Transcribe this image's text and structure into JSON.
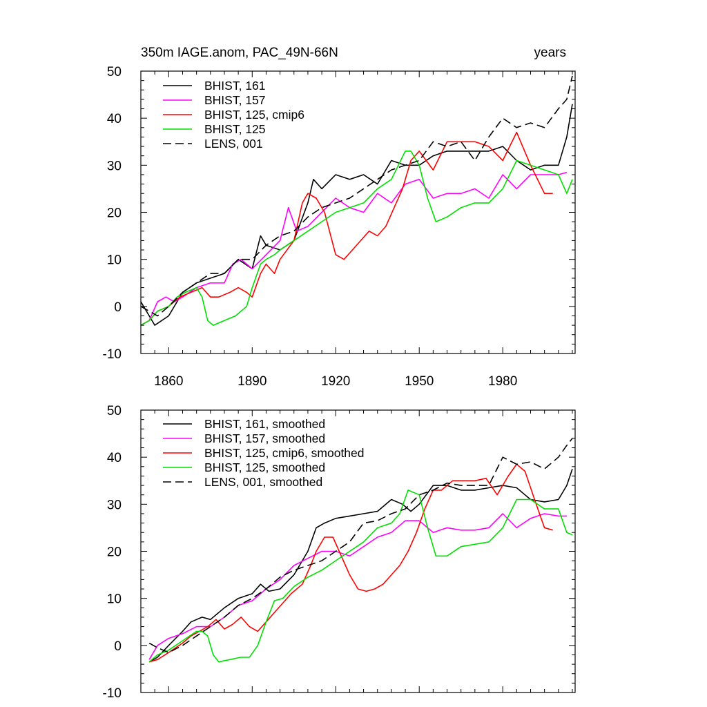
{
  "chart_data": [
    {
      "type": "line",
      "title_left": "350m IAGE.anom, PAC_49N-66N",
      "title_right": "years",
      "xlabel": "",
      "ylabel": "",
      "xlim": [
        1850,
        2006
      ],
      "ylim": [
        -10,
        50
      ],
      "x_ticks": [
        1860,
        1890,
        1920,
        1950,
        1980
      ],
      "x_tick_labels": [
        "1860",
        "1890",
        "1920",
        "1950",
        "1980"
      ],
      "y_ticks": [
        -10,
        0,
        10,
        20,
        30,
        40,
        50
      ],
      "y_tick_labels": [
        "-10",
        "0",
        "10",
        "20",
        "30",
        "40",
        "50"
      ],
      "legend_position": "top-left",
      "series": [
        {
          "name": "BHIST, 161",
          "color": "#000000",
          "dash": "solid",
          "x": [
            1850,
            1855,
            1860,
            1865,
            1870,
            1875,
            1880,
            1885,
            1890,
            1893,
            1895,
            1900,
            1905,
            1910,
            1912,
            1915,
            1920,
            1925,
            1930,
            1935,
            1940,
            1945,
            1950,
            1955,
            1960,
            1965,
            1970,
            1975,
            1980,
            1985,
            1990,
            1995,
            2000,
            2003,
            2005
          ],
          "values": [
            1,
            -4,
            -2,
            3,
            5,
            6,
            7,
            10,
            8,
            15,
            13,
            12,
            14,
            22,
            27,
            25,
            28,
            27,
            28,
            26,
            31,
            30,
            30,
            32,
            33,
            33,
            33,
            33,
            34,
            31,
            29,
            30,
            30,
            36,
            43
          ]
        },
        {
          "name": "BHIST, 157",
          "color": "#ff00ff",
          "dash": "solid",
          "x": [
            1850,
            1853,
            1856,
            1859,
            1862,
            1865,
            1870,
            1875,
            1880,
            1883,
            1886,
            1890,
            1895,
            1900,
            1903,
            1906,
            1910,
            1915,
            1920,
            1925,
            1930,
            1935,
            1940,
            1945,
            1950,
            1955,
            1960,
            1965,
            1970,
            1975,
            1980,
            1985,
            1990,
            1995,
            2000,
            2003
          ],
          "values": [
            -4,
            -3,
            1,
            2,
            1,
            2,
            4,
            5,
            5,
            9,
            10,
            8,
            11,
            14,
            21,
            16,
            17,
            20,
            23,
            21,
            20,
            24,
            22,
            26,
            27,
            23,
            24,
            24,
            25,
            23,
            28,
            25,
            28,
            28,
            28,
            28.5
          ]
        },
        {
          "name": "BHIST, 125, cmip6",
          "color": "#ff0000",
          "dash": "solid",
          "x": [
            1850,
            1853,
            1856,
            1860,
            1864,
            1868,
            1872,
            1875,
            1878,
            1882,
            1885,
            1888,
            1890,
            1893,
            1895,
            1898,
            1900,
            1905,
            1908,
            1910,
            1913,
            1916,
            1920,
            1923,
            1926,
            1929,
            1932,
            1935,
            1938,
            1941,
            1944,
            1947,
            1950,
            1955,
            1960,
            1965,
            1970,
            1975,
            1980,
            1985,
            1990,
            1995,
            1998
          ],
          "values": [
            -4,
            -3,
            -1,
            0,
            2,
            3,
            4,
            2,
            2,
            3,
            4,
            3,
            2,
            7,
            9,
            7,
            10,
            14,
            22,
            24,
            23,
            20,
            11,
            10,
            12,
            14,
            16,
            15,
            17,
            21,
            25,
            31,
            33,
            29,
            35,
            35,
            35,
            34,
            31,
            37,
            30,
            24,
            24
          ]
        },
        {
          "name": "BHIST, 125",
          "color": "#00e000",
          "dash": "solid",
          "x": [
            1850,
            1853,
            1856,
            1860,
            1863,
            1866,
            1870,
            1872,
            1874,
            1876,
            1880,
            1884,
            1888,
            1890,
            1893,
            1895,
            1898,
            1900,
            1905,
            1910,
            1915,
            1920,
            1925,
            1930,
            1935,
            1940,
            1945,
            1947,
            1950,
            1953,
            1956,
            1960,
            1965,
            1970,
            1975,
            1980,
            1985,
            1990,
            1995,
            2000,
            2003,
            2005
          ],
          "values": [
            -4,
            -3,
            -1,
            0,
            2,
            3,
            4,
            2,
            -3,
            -4,
            -3,
            -2,
            0,
            4,
            9,
            10,
            11,
            12,
            14,
            16,
            18,
            20,
            21,
            22,
            25,
            27,
            33,
            33,
            30,
            23,
            18,
            19,
            21,
            22,
            22,
            25,
            31,
            30,
            29,
            28,
            24,
            27
          ]
        },
        {
          "name": "LENS, 001",
          "color": "#000000",
          "dash": "dashed",
          "x": [
            1850,
            1853,
            1856,
            1860,
            1865,
            1870,
            1875,
            1880,
            1885,
            1890,
            1895,
            1900,
            1905,
            1910,
            1915,
            1920,
            1925,
            1930,
            1935,
            1940,
            1945,
            1950,
            1955,
            1960,
            1965,
            1970,
            1975,
            1980,
            1985,
            1990,
            1995,
            2000,
            2003,
            2005
          ],
          "values": [
            0,
            -1,
            -2,
            0,
            3,
            5,
            7,
            7,
            10,
            10,
            13,
            15,
            16,
            19,
            21,
            22,
            23,
            25,
            27,
            29,
            30,
            31,
            35,
            34,
            35,
            31,
            36,
            40,
            38,
            39,
            38,
            42,
            44,
            49
          ]
        }
      ]
    },
    {
      "type": "line",
      "title_left": "",
      "title_right": "",
      "xlabel": "",
      "ylabel": "",
      "xlim": [
        1850,
        2006
      ],
      "ylim": [
        -10,
        50
      ],
      "x_ticks": [
        1860,
        1890,
        1920,
        1950,
        1980
      ],
      "x_tick_labels": [],
      "y_ticks": [
        -10,
        0,
        10,
        20,
        30,
        40,
        50
      ],
      "y_tick_labels": [
        "-10",
        "0",
        "10",
        "20",
        "30",
        "40",
        "50"
      ],
      "legend_position": "top-left",
      "series": [
        {
          "name": "BHIST, 161, smoothed",
          "color": "#000000",
          "dash": "solid",
          "x": [
            1853,
            1856,
            1860,
            1865,
            1868,
            1872,
            1875,
            1880,
            1885,
            1890,
            1893,
            1896,
            1900,
            1905,
            1910,
            1913,
            1916,
            1920,
            1925,
            1930,
            1935,
            1940,
            1944,
            1947,
            1950,
            1955,
            1960,
            1965,
            1970,
            1975,
            1980,
            1985,
            1990,
            1995,
            2000,
            2003,
            2005
          ],
          "values": [
            -3.5,
            -2.5,
            0,
            3,
            5,
            6,
            5.5,
            8,
            10,
            11,
            13,
            11.5,
            12,
            15,
            20,
            25,
            26,
            27,
            27.5,
            28,
            28.5,
            31,
            30,
            28.5,
            30,
            34,
            34,
            33,
            33,
            33.5,
            34,
            33.5,
            31,
            30.5,
            31,
            34,
            37.5
          ]
        },
        {
          "name": "BHIST, 157, smoothed",
          "color": "#ff00ff",
          "dash": "solid",
          "x": [
            1853,
            1856,
            1860,
            1865,
            1870,
            1875,
            1880,
            1885,
            1890,
            1895,
            1900,
            1905,
            1910,
            1915,
            1920,
            1925,
            1930,
            1935,
            1940,
            1945,
            1950,
            1955,
            1960,
            1965,
            1970,
            1975,
            1980,
            1985,
            1990,
            1995,
            2000,
            2003
          ],
          "values": [
            -3,
            0,
            1.5,
            2.5,
            4,
            4,
            6,
            8.5,
            9.5,
            12,
            14,
            17,
            18.5,
            20,
            20,
            19,
            21,
            23,
            24,
            26.5,
            26.5,
            24,
            25,
            24.5,
            24.5,
            25,
            28,
            25,
            27,
            28,
            27.5,
            27.5
          ]
        },
        {
          "name": "BHIST, 125, cmip6, smoothed",
          "color": "#ff0000",
          "dash": "solid",
          "x": [
            1853,
            1856,
            1860,
            1865,
            1868,
            1871,
            1874,
            1877,
            1880,
            1883,
            1886,
            1889,
            1892,
            1895,
            1898,
            1901,
            1904,
            1908,
            1911,
            1913,
            1916,
            1919,
            1922,
            1925,
            1928,
            1931,
            1934,
            1937,
            1940,
            1943,
            1946,
            1949,
            1952,
            1955,
            1958,
            1962,
            1966,
            1970,
            1974,
            1978,
            1982,
            1985,
            1988,
            1992,
            1995,
            1998
          ],
          "values": [
            -3.5,
            -3,
            -1.5,
            0.5,
            2,
            3,
            4,
            5.5,
            3.5,
            4.5,
            6,
            4,
            3,
            5,
            7,
            9,
            11,
            13,
            17,
            20,
            23,
            23,
            19,
            15,
            12,
            11.5,
            12,
            13,
            15,
            17,
            20,
            24,
            29,
            33,
            33,
            35,
            35,
            35,
            35.5,
            32,
            36,
            38.5,
            37,
            30,
            25,
            24.5
          ]
        },
        {
          "name": "BHIST, 125, smoothed",
          "color": "#00e000",
          "dash": "solid",
          "x": [
            1853,
            1856,
            1860,
            1865,
            1870,
            1872,
            1874,
            1876,
            1878,
            1882,
            1886,
            1889,
            1892,
            1895,
            1898,
            1901,
            1905,
            1910,
            1915,
            1920,
            1925,
            1930,
            1935,
            1940,
            1943,
            1946,
            1950,
            1953,
            1956,
            1960,
            1965,
            1970,
            1975,
            1980,
            1985,
            1990,
            1995,
            2000,
            2003,
            2005
          ],
          "values": [
            -3.5,
            -2,
            -1,
            1,
            3,
            3,
            2,
            -2,
            -3.5,
            -3,
            -2.5,
            -2.5,
            0,
            5,
            9.5,
            10,
            12.5,
            14.5,
            16,
            18,
            20,
            22,
            25,
            26,
            28,
            33,
            32,
            25,
            19,
            19,
            21,
            21.5,
            22,
            25,
            31,
            31,
            29,
            29,
            24,
            23.5
          ]
        },
        {
          "name": "LENS, 001, smoothed",
          "color": "#000000",
          "dash": "dashed",
          "x": [
            1853,
            1856,
            1860,
            1865,
            1870,
            1875,
            1880,
            1885,
            1890,
            1895,
            1900,
            1905,
            1910,
            1915,
            1920,
            1925,
            1930,
            1935,
            1940,
            1945,
            1950,
            1955,
            1960,
            1965,
            1970,
            1975,
            1980,
            1985,
            1990,
            1995,
            2000,
            2003,
            2005
          ],
          "values": [
            0.5,
            -0.5,
            -1.5,
            0,
            2,
            4,
            6,
            8.5,
            10,
            12,
            14.5,
            16,
            17,
            18,
            20,
            22,
            26,
            26.5,
            28,
            29,
            32,
            33,
            34.5,
            34,
            34,
            34,
            40,
            38.5,
            39,
            37.5,
            40,
            42.5,
            44
          ]
        }
      ]
    }
  ]
}
